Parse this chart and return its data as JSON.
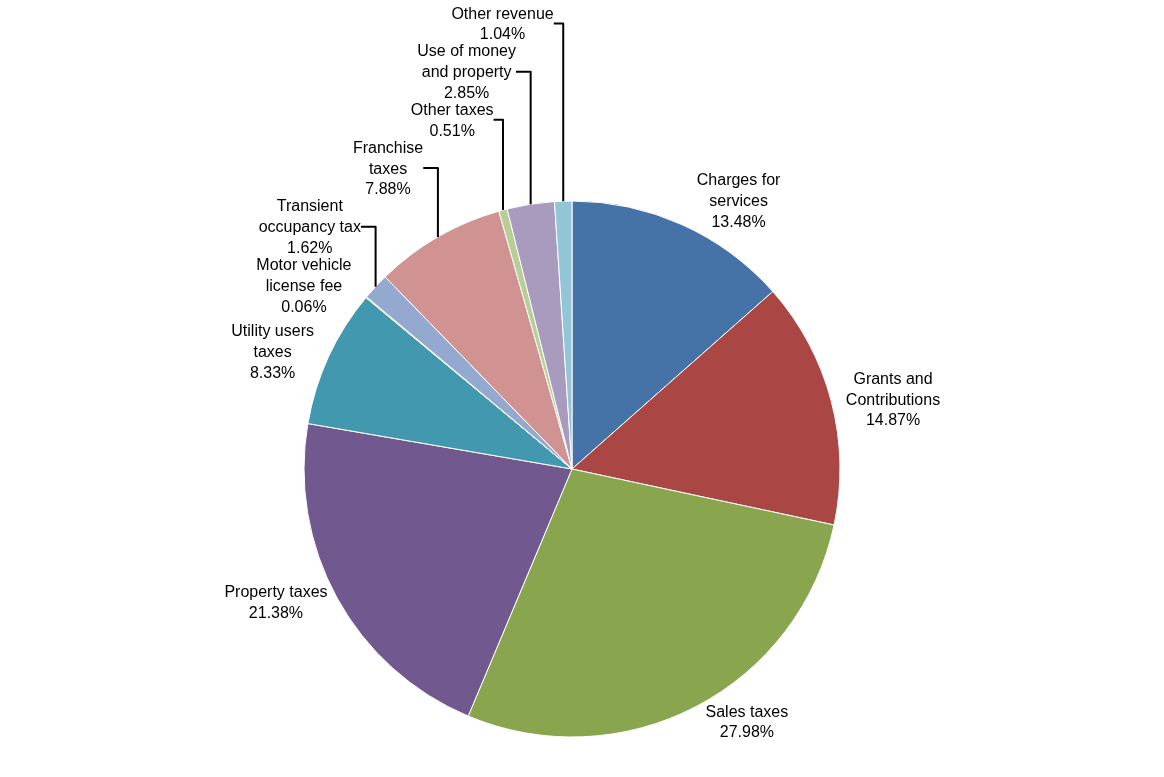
{
  "chart_data": {
    "type": "pie",
    "categories": [
      "Charges for services",
      "Grants and Contributions",
      "Sales taxes",
      "Property taxes",
      "Utility users taxes",
      "Motor vehicle license fee",
      "Transient occupancy tax",
      "Franchise taxes",
      "Other taxes",
      "Use of money and property",
      "Other revenue"
    ],
    "values": [
      13.48,
      14.87,
      27.98,
      21.38,
      8.33,
      0.06,
      1.62,
      7.88,
      0.51,
      2.85,
      1.04
    ],
    "value_labels": [
      "13.48%",
      "14.87%",
      "27.98%",
      "21.38%",
      "8.33%",
      "0.06%",
      "1.62%",
      "7.88%",
      "0.51%",
      "2.85%",
      "1.04%"
    ],
    "colors": [
      "#4572a7",
      "#aa4643",
      "#89a54e",
      "#71588f",
      "#4198af",
      "#db843d",
      "#93a9cf",
      "#d19392",
      "#b9cd96",
      "#a99bbd",
      "#92c5d6"
    ],
    "legend": false
  }
}
